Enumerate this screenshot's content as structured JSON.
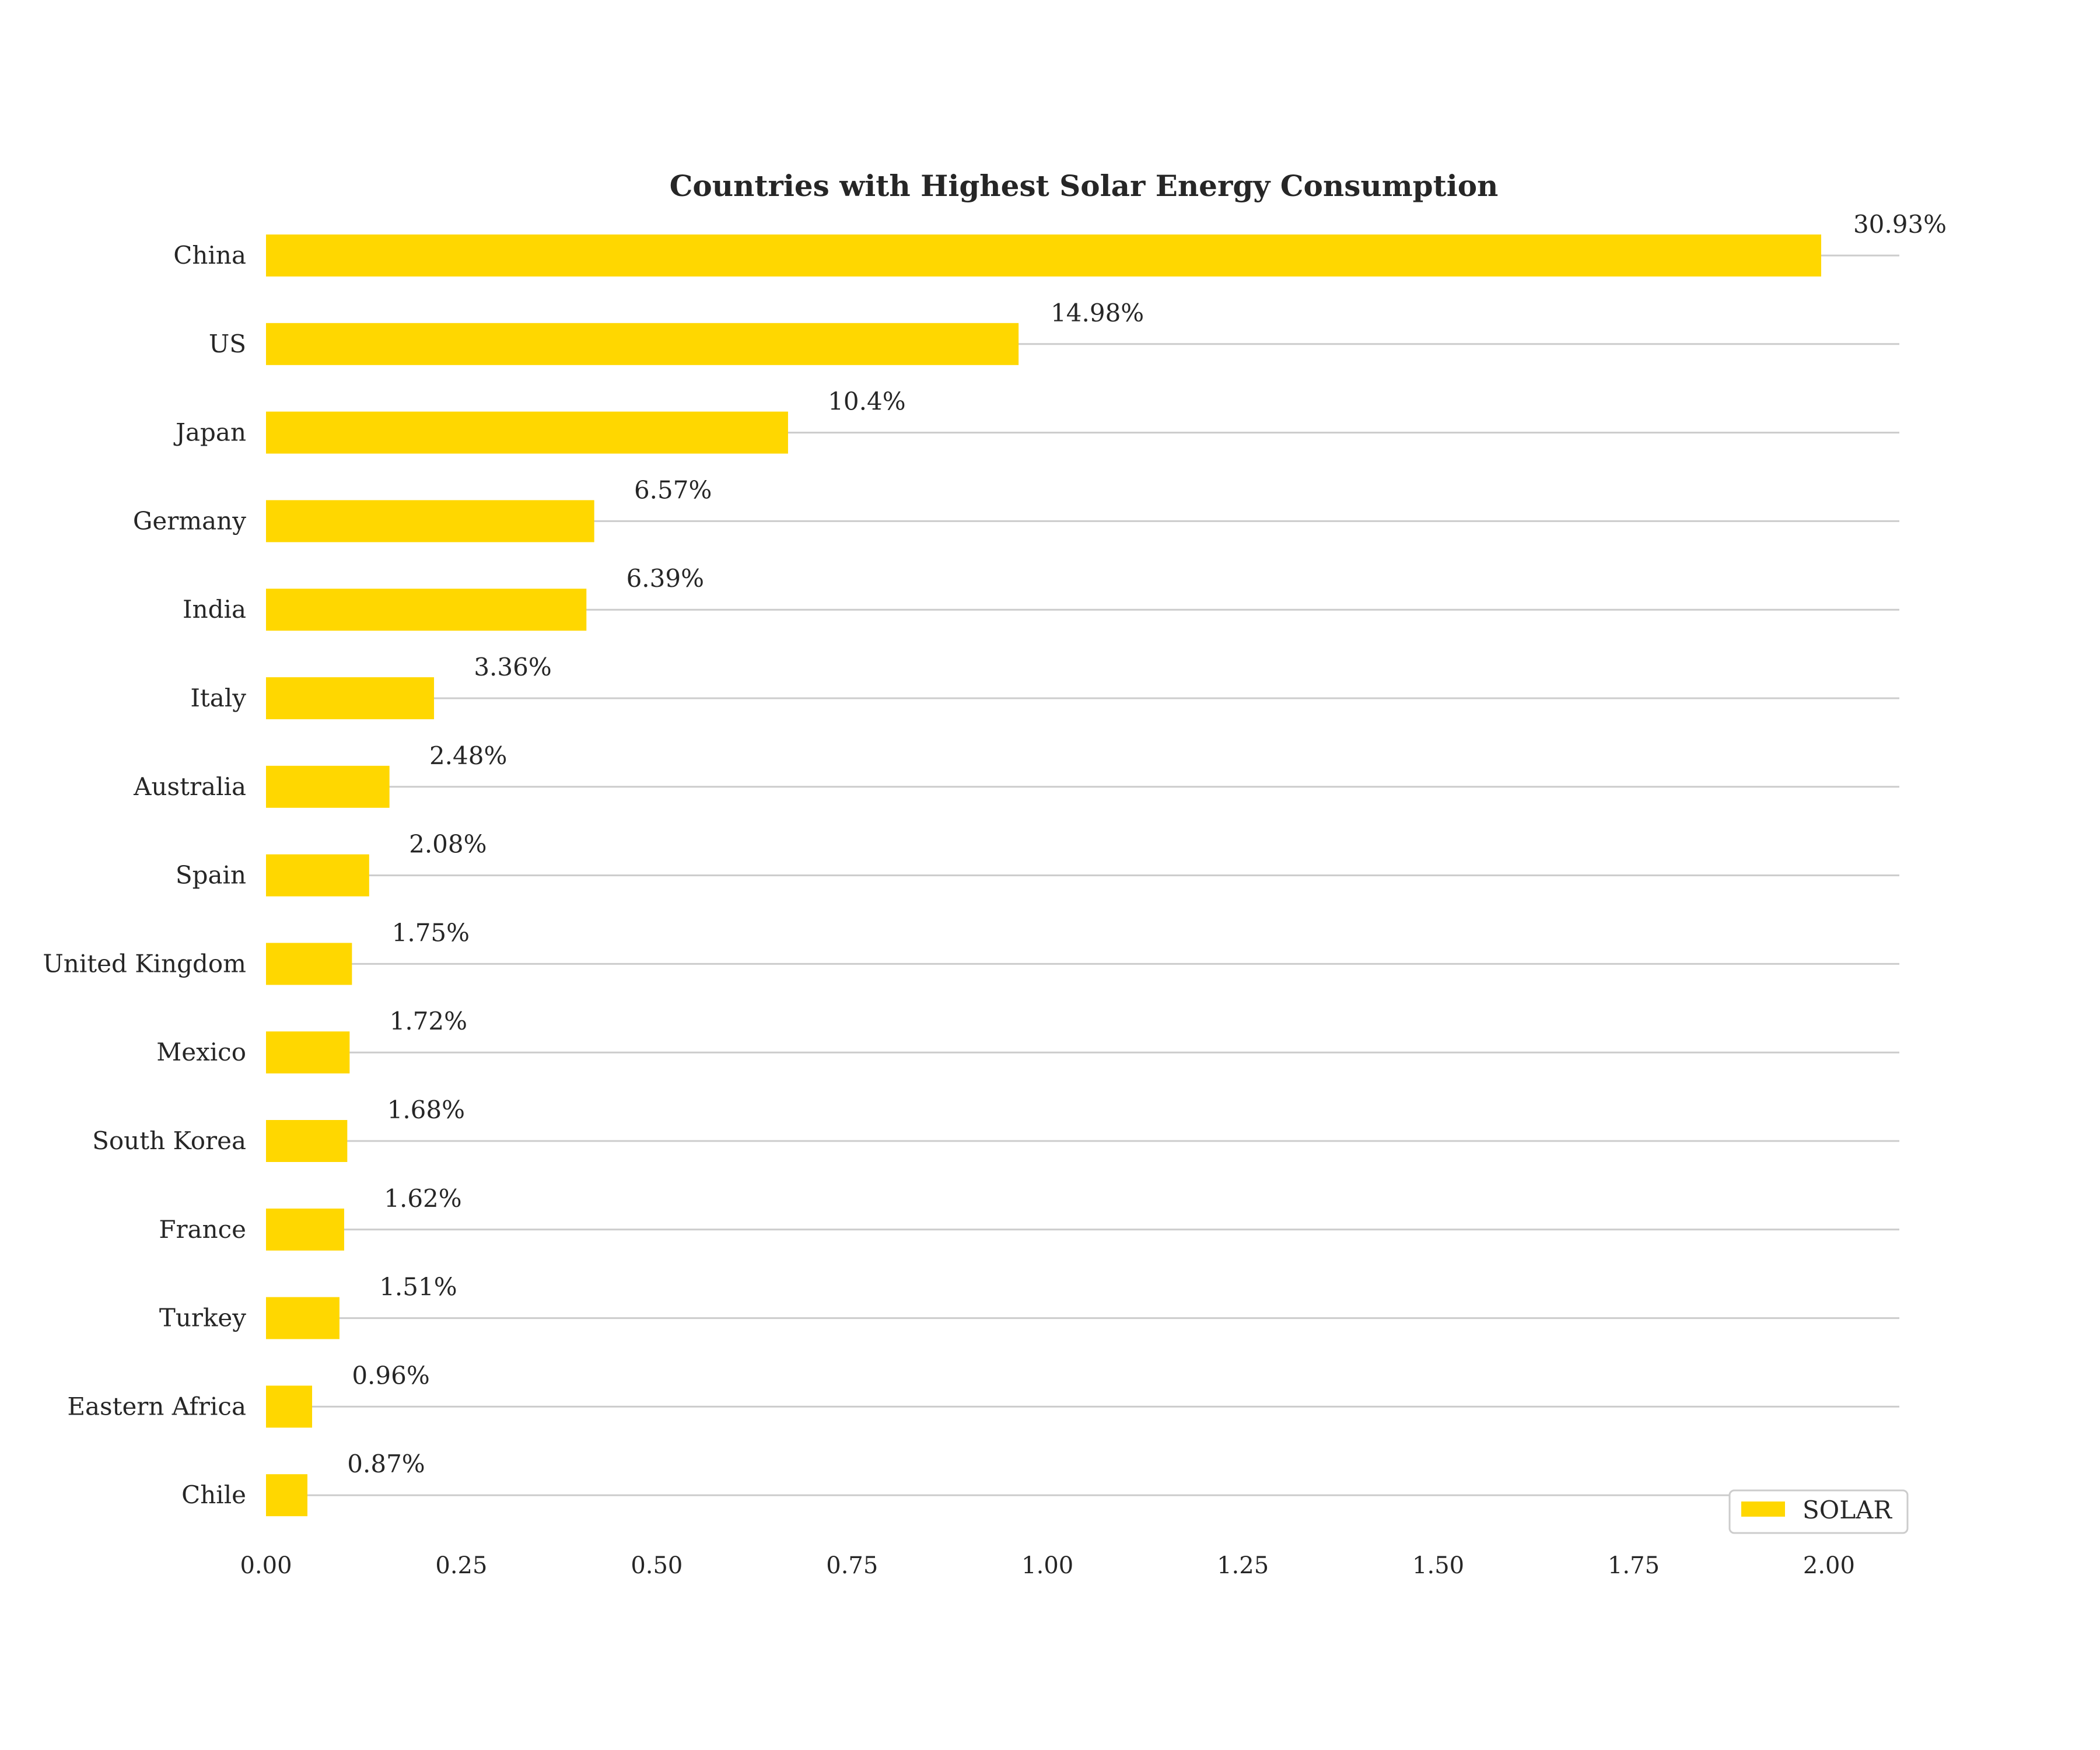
{
  "chart_data": {
    "type": "bar",
    "orientation": "horizontal",
    "title": "Countries with Highest Solar Energy Consumption",
    "xlabel": "",
    "ylabel": "",
    "xlim": [
      0,
      2.09
    ],
    "xticks": [
      0.0,
      0.25,
      0.5,
      0.75,
      1.0,
      1.25,
      1.5,
      1.75,
      2.0
    ],
    "xtick_labels": [
      "0.00",
      "0.25",
      "0.50",
      "0.75",
      "1.00",
      "1.25",
      "1.50",
      "1.75",
      "2.00"
    ],
    "categories": [
      "China",
      "US",
      "Japan",
      "Germany",
      "India",
      "Italy",
      "Australia",
      "Spain",
      "United Kingdom",
      "Mexico",
      "South Korea",
      "France",
      "Turkey",
      "Eastern Africa",
      "Chile"
    ],
    "series": [
      {
        "name": "SOLAR",
        "color": "#FFD700",
        "values": [
          1.99,
          0.963,
          0.668,
          0.42,
          0.41,
          0.215,
          0.158,
          0.132,
          0.11,
          0.107,
          0.104,
          0.1,
          0.094,
          0.059,
          0.053
        ],
        "labels": [
          "30.93%",
          "14.98%",
          "10.4%",
          "6.57%",
          "6.39%",
          "3.36%",
          "2.48%",
          "2.08%",
          "1.75%",
          "1.72%",
          "1.68%",
          "1.62%",
          "1.51%",
          "0.96%",
          "0.87%"
        ]
      }
    ],
    "grid": "horizontal lines at each category",
    "legend": "bottom-right"
  }
}
